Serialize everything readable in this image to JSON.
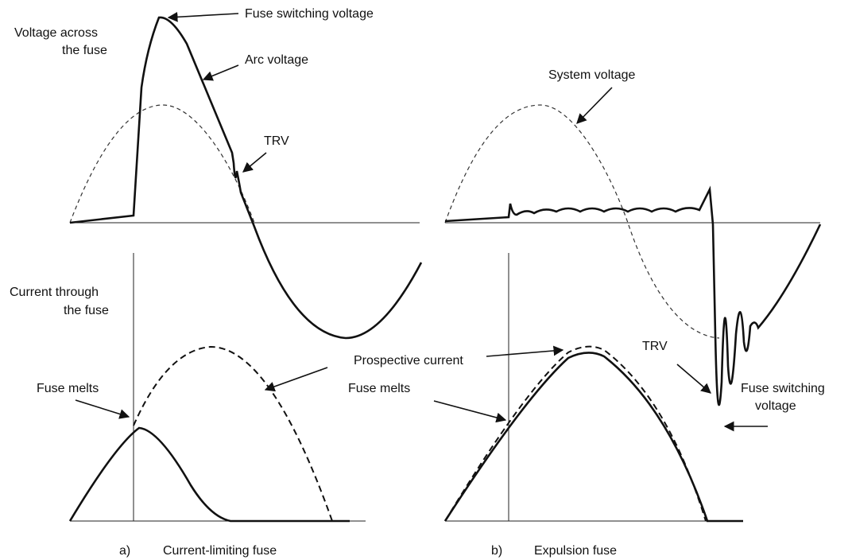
{
  "panels": [
    {
      "letter": "a)",
      "caption": "Current-limiting fuse",
      "labels": {
        "voltage_across": [
          "Voltage across",
          "the fuse"
        ],
        "switching_voltage": "Fuse switching voltage",
        "arc_voltage": "Arc voltage",
        "trv": "TRV",
        "current_through": [
          "Current through",
          "the fuse"
        ],
        "fuse_melts": "Fuse melts"
      }
    },
    {
      "letter": "b)",
      "caption": "Expulsion fuse",
      "labels": {
        "system_voltage": "System voltage",
        "prospective_current": "Prospective current",
        "fuse_melts": "Fuse melts",
        "trv": "TRV",
        "switching_voltage": [
          "Fuse switching",
          "voltage"
        ]
      }
    }
  ]
}
